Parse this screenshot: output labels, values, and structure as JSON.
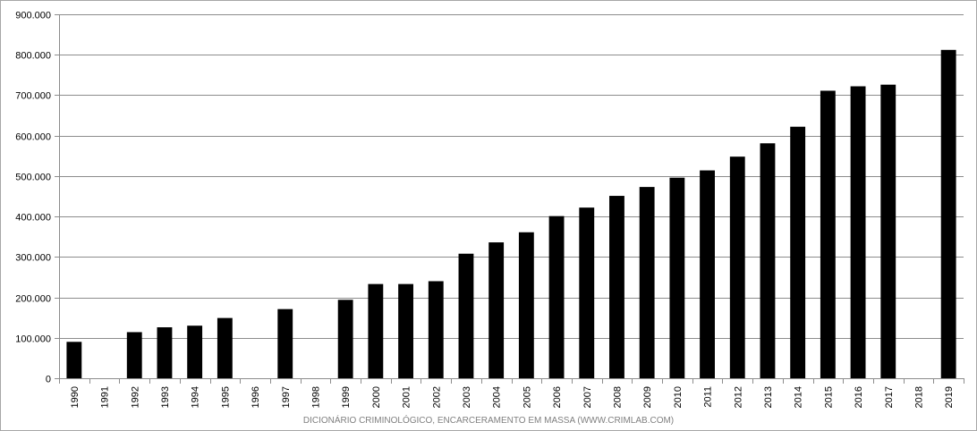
{
  "chart_data": {
    "type": "bar",
    "categories": [
      "1990",
      "1991",
      "1992",
      "1993",
      "1994",
      "1995",
      "1996",
      "1997",
      "1998",
      "1999",
      "2000",
      "2001",
      "2002",
      "2003",
      "2004",
      "2005",
      "2006",
      "2007",
      "2008",
      "2009",
      "2010",
      "2011",
      "2012",
      "2013",
      "2014",
      "2015",
      "2016",
      "2017",
      "2018",
      "2019"
    ],
    "values": [
      90000,
      null,
      114000,
      126000,
      130000,
      149000,
      null,
      171000,
      null,
      194000,
      233000,
      233000,
      240000,
      308000,
      336000,
      361000,
      401000,
      422000,
      451000,
      473000,
      496000,
      514000,
      548000,
      581000,
      622000,
      711000,
      722000,
      726000,
      null,
      812000
    ],
    "ylim": [
      0,
      900000
    ],
    "y_ticks": [
      0,
      100000,
      200000,
      300000,
      400000,
      500000,
      600000,
      700000,
      800000,
      900000
    ],
    "y_tick_labels": [
      "0",
      "100.000",
      "200.000",
      "300.000",
      "400.000",
      "500.000",
      "600.000",
      "700.000",
      "800.000",
      "900.000"
    ],
    "grid": "horizontal",
    "bar_color": "#000000",
    "gridline_color": "#8c8c8c",
    "title": "",
    "xlabel": "",
    "ylabel": ""
  },
  "source_note": "DICIONÁRIO CRIMINOLÓGICO, ENCARCERAMENTO EM MASSA (WWW.CRIMLAB.COM)"
}
